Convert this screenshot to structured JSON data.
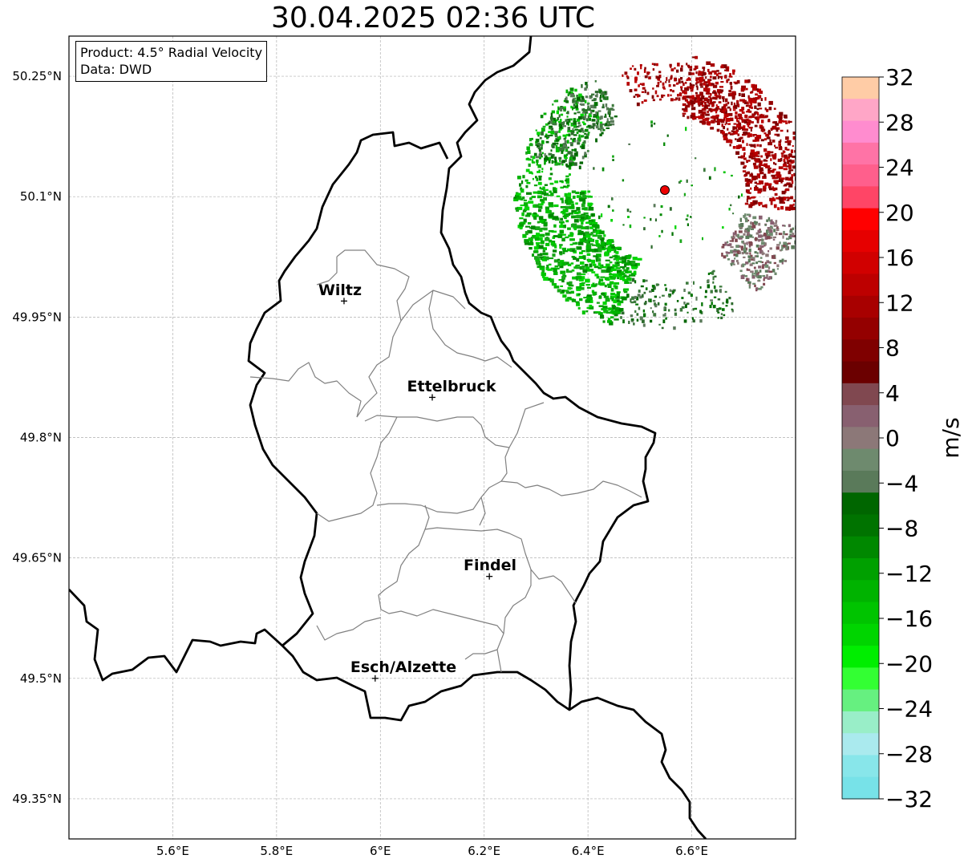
{
  "title": "30.04.2025 02:36 UTC",
  "info": {
    "product": "Product: 4.5° Radial Velocity",
    "data": "Data: DWD"
  },
  "lat_ticks": [
    "50.25°N",
    "50.1°N",
    "49.95°N",
    "49.8°N",
    "49.65°N",
    "49.5°N",
    "49.35°N"
  ],
  "lon_ticks": [
    "5.6°E",
    "5.8°E",
    "6°E",
    "6.2°E",
    "6.4°E",
    "6.6°E"
  ],
  "cities": [
    {
      "name": "Wiltz"
    },
    {
      "name": "Ettelbruck"
    },
    {
      "name": "Findel"
    },
    {
      "name": "Esch/Alzette"
    }
  ],
  "colorbar": {
    "label": "m/s",
    "ticks": [
      "32",
      "28",
      "24",
      "20",
      "16",
      "12",
      "8",
      "4",
      "0",
      "−4",
      "−8",
      "−12",
      "−16",
      "−20",
      "−24",
      "−28",
      "−32"
    ],
    "range": [
      -32,
      32
    ],
    "step": 4,
    "colors_top_to_bottom": [
      "#ffcca6",
      "#ffa6c7",
      "#ff8ccf",
      "#ff73a6",
      "#ff5f8c",
      "#ff4566",
      "#ff0000",
      "#e60000",
      "#d10000",
      "#bd0000",
      "#a80000",
      "#940000",
      "#7f0000",
      "#6b0000",
      "#804850",
      "#886070",
      "#8c7878",
      "#6e8a6e",
      "#5a7a5a",
      "#006600",
      "#007300",
      "#008800",
      "#00a000",
      "#00b300",
      "#00c400",
      "#00d500",
      "#00ee00",
      "#33ff33",
      "#66f080",
      "#99eec8",
      "#aaeaee",
      "#88e6ea",
      "#77e2e8"
    ]
  },
  "radar_site": {
    "lat": 50.11,
    "lon": 6.55,
    "color": "#ee0000"
  },
  "map": {
    "lon_range": [
      5.4,
      6.8
    ],
    "lat_range": [
      49.3,
      50.3
    ],
    "outer_boundaries_color": "#000000",
    "district_boundaries_color": "#808080",
    "grid_color": "#b0b0b0"
  }
}
